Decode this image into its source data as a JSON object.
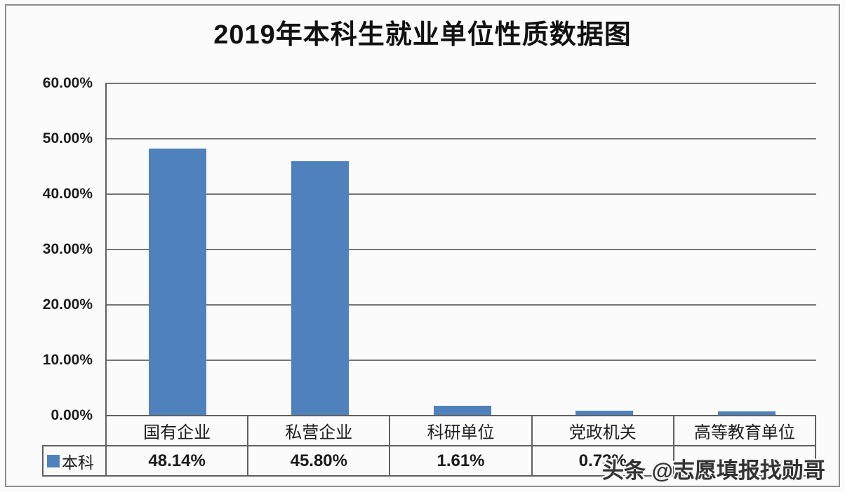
{
  "title": "2019年本科生就业单位性质数据图",
  "watermark": "头条 @志愿填报找勋哥",
  "chart_data": {
    "type": "bar",
    "title": "2019年本科生就业单位性质数据图",
    "categories": [
      "国有企业",
      "私营企业",
      "科研单位",
      "党政机关",
      "高等教育单位"
    ],
    "series": [
      {
        "name": "本科",
        "values": [
          48.14,
          45.8,
          1.61,
          0.73,
          0.6
        ]
      }
    ],
    "display_values": [
      "48.14%",
      "45.80%",
      "1.61%",
      "0.73%",
      ""
    ],
    "y_ticks": [
      "60.00%",
      "50.00%",
      "40.00%",
      "30.00%",
      "20.00%",
      "10.00%",
      "0.00%"
    ],
    "ylim": [
      0,
      60
    ],
    "grid": true,
    "legend": {
      "label": "本科",
      "swatch_color": "#4f81bd",
      "position": "bottom-table"
    },
    "bar_color": "#4f81bd",
    "note": "fifth series value label hidden behind watermark; bar value estimated from bar height"
  }
}
